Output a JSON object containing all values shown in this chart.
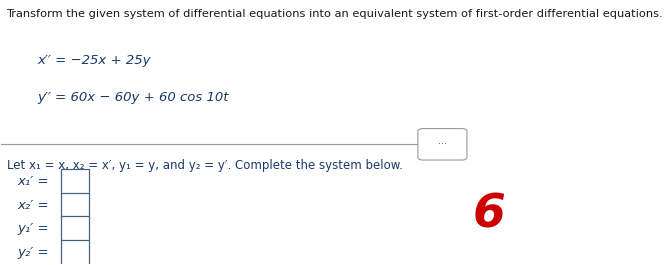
{
  "title_text": "Transform the given system of differential equations into an equivalent system of first-order differential equations.",
  "eq1": "x′′ = −25x + 25y",
  "eq2": "y′′ = 60x − 60y + 60 cos 10t",
  "subtitle": "Let x₁ = x, x₂ = x′, y₁ = y, and y₂ = y′. Complete the system below.",
  "labels": [
    "x₁′ =",
    "x₂′ =",
    "y₁′ =",
    "y₂′ ="
  ],
  "bg_color": "#ffffff",
  "text_color": "#1a3a6b",
  "title_color": "#1a1a1a",
  "eq_color": "#1a3a6b",
  "red_color": "#cc0000",
  "line_color": "#999999"
}
